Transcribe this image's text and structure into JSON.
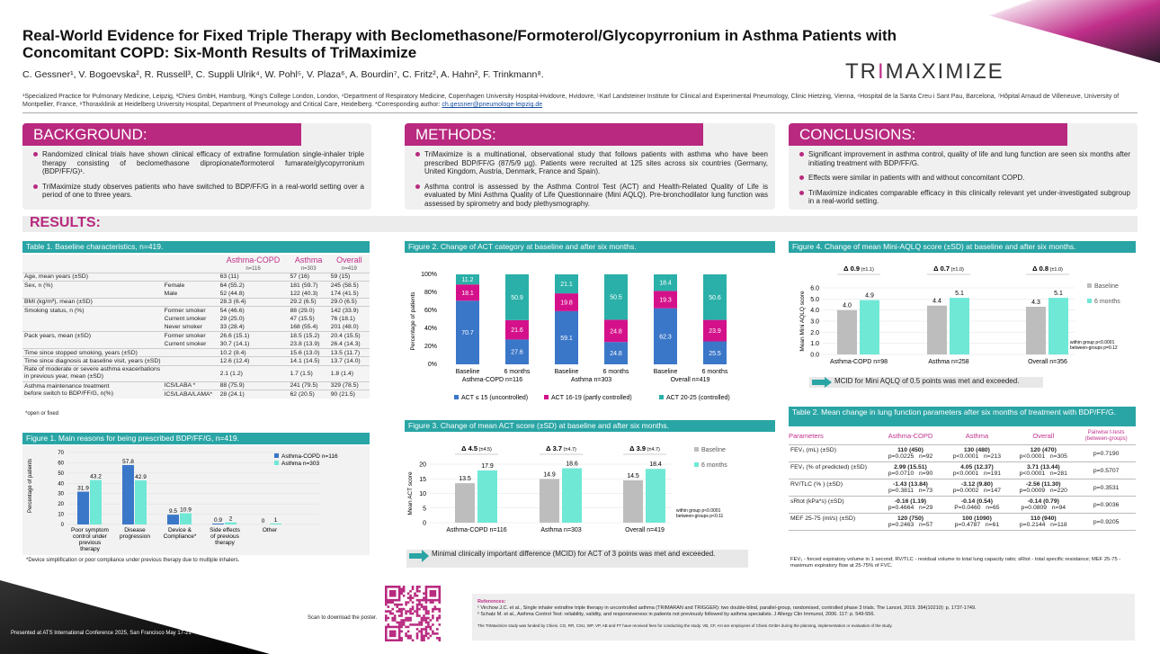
{
  "header": {
    "title": "Real-World Evidence for Fixed Triple Therapy with Beclomethasone/Formoterol/Glycopyrronium in Asthma Patients with Concomitant COPD: Six-Month Results of TriMaximize",
    "authors": "C. Gessner¹, V. Bogoevska², R. Russell³, C. Suppli Ulrik⁴, W. Pohl⁵, V. Plaza⁶, A. Bourdin⁷, C. Fritz², A. Hahn², F. Trinkmann⁸.",
    "affiliations": "¹Specialized Practice for Pulmonary Medicine, Leipzig, ²Chiesi GmbH, Hamburg, ³King's College London, London, ⁴Department of Respiratory Medicine, Copenhagen University Hospital-Hvidovre, Hvidovre, ⁵Karl Landsteiner Institute for Clinical and Experimental Pneumology, Clinic Hietzing, Vienna, ⁶Hospital de la Santa Creu i Sant Pau, Barcelona, ⁷Hôpital Arnaud de Villeneuve, University of Montpellier, France, ⁸Thoraxklinik at Heidelberg University Hospital, Department of Pneumology and Critical Care, Heidelberg. *Corresponding author: ",
    "email": "ch.gessner@pneumologe-leipzig.de",
    "logo_a": "TR",
    "logo_i": "I",
    "logo_b": "MAXIMIZE"
  },
  "background": {
    "heading": "BACKGROUND:",
    "items": [
      "Randomized clinical trials have shown clinical efficacy of extrafine formulation single-inhaler triple therapy consisting of beclomethasone dipropionate/formoterol fumarate/glycopyrronium (BDP/FF/G)¹.",
      "TriMaximize study observes patients who have switched to BDP/FF/G in a real-world setting over a period of one to three years."
    ]
  },
  "methods": {
    "heading": "METHODS:",
    "items": [
      "TriMaximize is a multinational, observational study that follows patients with asthma who have been prescribed BDP/FF/G (87/5/9 µg). Patients were recruited at 125 sites across six countries (Germany, United Kingdom, Austria, Denmark, France and Spain).",
      "Asthma control is assessed by the Asthma Control Test (ACT) and Health-Related Quality of Life is evaluated by Mini Asthma Quality of Life Questionnaire (Mini AQLQ). Pre-bronchodilator lung function was assessed by spirometry and body plethysmography."
    ]
  },
  "conclusions": {
    "heading": "CONCLUSIONS:",
    "items": [
      "Significant improvement in asthma control, quality of life and lung function are seen six months after initiating treatment with BDP/FF/G.",
      "Effects were similar in patients with and without concomitant COPD.",
      "TriMaximize indicates comparable efficacy in this clinically relevant yet under-investigated subgroup in a real-world setting."
    ]
  },
  "results_heading": "RESULTS:",
  "table1": {
    "title": "Table 1. Baseline characteristics, n=419.",
    "cols": [
      "Asthma-COPD",
      "Asthma",
      "Overall"
    ],
    "ns": [
      "n=116",
      "n=303",
      "n=419"
    ],
    "rows": [
      [
        "Age, mean years (±SD)",
        "",
        "63 (11)",
        "57 (16)",
        "59 (15)"
      ],
      [
        "Sex, n (%)",
        "Female",
        "64 (55.2)",
        "181 (59.7)",
        "245 (58.5)"
      ],
      [
        "",
        "Male",
        "52 (44.8)",
        "122 (40.3)",
        "174 (41.5)"
      ],
      [
        "BMI (kg/m²), mean (±SD)",
        "",
        "28.3 (6.4)",
        "29.2 (6.5)",
        "29.0 (6.5)"
      ],
      [
        "Smoking status, n (%)",
        "Former smoker",
        "54 (46.6)",
        "88 (29.0)",
        "142 (33.9)"
      ],
      [
        "",
        "Current smoker",
        "29 (25.0)",
        "47 (15.5)",
        "76 (18.1)"
      ],
      [
        "",
        "Never smoker",
        "33 (28.4)",
        "168 (55.4)",
        "201 (48.0)"
      ],
      [
        "Pack years, mean (±SD)",
        "Former smoker",
        "26.6 (15.1)",
        "18.5 (15.2)",
        "20.4 (15.5)"
      ],
      [
        "",
        "Current smoker",
        "30.7 (14.1)",
        "23.8 (13.9)",
        "26.4 (14.3)"
      ],
      [
        "Time since stopped smoking, years (±SD)",
        "",
        "10.2 (8.4)",
        "15.6 (13.0)",
        "13.5 (11.7)"
      ],
      [
        "Time since diagnosis at baseline visit, years (±SD)",
        "",
        "12.6 (12.4)",
        "14.1 (14.5)",
        "13.7 (14.0)"
      ]
    ],
    "exac_label1": "Rate of moderate or severe asthma exacerbations",
    "exac_label2": "in previous year, mean (±SD)",
    "exac": [
      "2.1 (1.2)",
      "1.7 (1.5)",
      "1.8 (1.4)"
    ],
    "maint_label1": "Asthma maintenance treatment",
    "maint_label2": "before switch to BDP/FF/G, n(%)",
    "maint": [
      [
        "ICS/LABA *",
        "88 (75.9)",
        "241 (79.5)",
        "329 (78.5)"
      ],
      [
        "ICS/LABA/LAMA*",
        "28 (24.1)",
        "62 (20.5)",
        "90 (21.5)"
      ]
    ],
    "footnote": "*open or fixed"
  },
  "fig1": {
    "title": "Figure 1. Main reasons for being prescribed BDP/FF/G, ",
    "title_n": "n=419.",
    "footnote": "*Device simplification or poor compliance under previous therapy due to multiple inhalers.",
    "ylabel": "Percentage of patients"
  },
  "fig2": {
    "title": "Figure 2. Change of ACT category at baseline and after six months.",
    "ylabel": "Percentage of patients"
  },
  "fig3": {
    "title": "Figure 3. Change of mean ACT score (±SD) at baseline and after six months.",
    "ylabel": "Mean ACT score",
    "note1": "within group p<0.0001",
    "note2": "between-groups p<0.11",
    "mcid": "Minimal clinically important difference (MCID) for ACT of 3 points was met and exceeded."
  },
  "fig4": {
    "title": "Figure 4. Change of mean Mini-AQLQ score (±SD) at baseline and after six months.",
    "ylabel": "Mean Mini AQLQ score",
    "note1": "within group p<0.0001",
    "note2": "between-groups p=0.12",
    "mcid": "MCID for Mini AQLQ of 0.5 points was met and exceeded."
  },
  "table2": {
    "title": "Table 2. Mean change in lung function parameters after six months of treatment with BDP/FF/G.",
    "headers": [
      "Parameters",
      "Asthma-COPD",
      "Asthma",
      "Overall",
      "Pairwise t-tests (between-groups)"
    ],
    "rows": [
      {
        "param": "FEV₁ (mL) (±SD)",
        "ac": "110 (450)",
        "a": "130 (480)",
        "o": "120 (470)",
        "ac_p": "p=0.0225",
        "ac_n": "n=92",
        "a_p": "p<0.0001",
        "a_n": "n=213",
        "o_p": "p<0.0001",
        "o_n": "n=305",
        "pw": "p=0.7190"
      },
      {
        "param": "FEV₁ (% of predicted) (±SD)",
        "ac": "2.99 (15.51)",
        "a": "4.05 (12.37)",
        "o": "3.71 (13.44)",
        "ac_p": "p=0.0710",
        "ac_n": "n=90",
        "a_p": "p<0.0001",
        "a_n": "n=191",
        "o_p": "p<0.0001",
        "o_n": "n=281",
        "pw": "p=0.5707"
      },
      {
        "param": "RV/TLC (% ) (±SD)",
        "ac": "-1.43 (13.84)",
        "a": "-3.12 (9.80)",
        "o": "-2.56 (11.30)",
        "ac_p": "p=0.3811",
        "ac_n": "n=73",
        "a_p": "p=0.0002",
        "a_n": "n=147",
        "o_p": "p=0.0009",
        "o_n": "n=220",
        "pw": "p=0.3531"
      },
      {
        "param": "sRtot (kPa*s) (±SD)",
        "ac": "-0.16 (1.19)",
        "a": "-0.14 (0.54)",
        "o": "-0.14 (0.79)",
        "ac_p": "p=0.4664",
        "ac_n": "n=29",
        "a_p": "P=0.0460",
        "a_n": "n=65",
        "o_p": "p=0.0809",
        "o_n": "n=94",
        "pw": "p=0.9036"
      },
      {
        "param": "MEF 25-75 (ml/s) (±SD)",
        "ac": "120 (750)",
        "a": "100 (1090)",
        "o": "110 (940)",
        "ac_p": "p=0.2463",
        "ac_n": "n=57",
        "a_p": "p=0.4787",
        "a_n": "n=61",
        "o_p": "p=0.2144",
        "o_n": "n=118",
        "pw": "p=0.9205"
      }
    ],
    "footnote": "FEV₁ - forced expiratory volume in 1 second; RV/TLC - residual volume to total lung capacity ratio; sRtot - total specific resistance; MEF 25-75 - maximum expiratory flow at 25-75% of FVC."
  },
  "refs": {
    "heading": "References:",
    "r1": "¹ Virchow J.C. et al., Single inhaler extrafine triple therapy in uncontrolled asthma (TRIMARAN and TRIGGER): two double-blind, parallel-group, randomised, controlled phase 3 trials. The Lancet, 2019. 394(10210): p. 1737-1749.",
    "r2": "² Schatz M. et al., Asthma Control Test: reliability, validity, and responsiveness in patients not previously followed by asthma specialists. J Allergy Clin Immunol, 2006. 117: p. 549-556.",
    "funding": "The TriMaximize study was funded by Chiesi. CG, RR, CSU, WP, VP, AB and FT have received fees for conducting the study. VB, CF, AH are employees of Chiesi GmbH during the planning, implementation or evaluation of the study."
  },
  "scan": "Scan to download the poster.",
  "presented": "Presented at ATS International Conference 2025, San Francisco  May 17-21",
  "chart_data": [
    {
      "type": "bar",
      "id": "fig1",
      "categories": [
        "Poor symptom control under previous therapy",
        "Disease progression",
        "Device & Compliance*",
        "Side effects of previous therapy",
        "Other"
      ],
      "series": [
        {
          "name": "Asthma-COPD n=116",
          "color": "#3b77c8",
          "values": [
            31.9,
            57.8,
            9.5,
            0.9,
            0
          ]
        },
        {
          "name": "Asthma n=303",
          "color": "#6fe8d6",
          "values": [
            43.2,
            42.9,
            10.9,
            2,
            1
          ]
        }
      ],
      "ylim": [
        0,
        70
      ],
      "yticks": [
        0,
        10,
        20,
        30,
        40,
        50,
        60,
        70
      ],
      "ylabel": "Percentage of patients"
    },
    {
      "type": "bar",
      "id": "fig2",
      "stacked": true,
      "groups": [
        "Asthma-COPD n=116",
        "Asthma n=303",
        "Overall n=419"
      ],
      "categories": [
        "Baseline",
        "6 months",
        "Baseline",
        "6 months",
        "Baseline",
        "6 months"
      ],
      "series": [
        {
          "name": "ACT ≤ 15 (uncontrolled)",
          "color": "#3b77c8",
          "values": [
            70.7,
            27.6,
            59.1,
            24.8,
            62.3,
            25.5
          ]
        },
        {
          "name": "ACT 16-19 (partly controlled)",
          "color": "#d4118a",
          "values": [
            18.1,
            21.6,
            19.8,
            24.8,
            19.3,
            23.9
          ]
        },
        {
          "name": "ACT 20-25 (controlled)",
          "color": "#2ab0a8",
          "values": [
            11.2,
            50.9,
            21.1,
            50.5,
            18.4,
            50.6
          ]
        }
      ],
      "ylim": [
        0,
        100
      ],
      "yticks": [
        "0%",
        "20%",
        "40%",
        "60%",
        "80%",
        "100%"
      ],
      "ylabel": "Percentage of patients"
    },
    {
      "type": "bar",
      "id": "fig3",
      "categories": [
        "Asthma-COPD n=116",
        "Asthma n=303",
        "Overall n=419"
      ],
      "series": [
        {
          "name": "Baseline",
          "color": "#bdbdbd",
          "values": [
            13.5,
            14.9,
            14.5
          ]
        },
        {
          "name": "6 months",
          "color": "#6fe8d6",
          "values": [
            17.9,
            18.6,
            18.4
          ]
        }
      ],
      "deltas": [
        "Δ 4.5",
        "Δ 3.7",
        "Δ 3.9"
      ],
      "delta_sd": [
        "(±4.5)",
        "(±4.7)",
        "(±4.7)"
      ],
      "ylim": [
        0,
        20
      ],
      "yticks": [
        0,
        5,
        10,
        15,
        20
      ],
      "ylabel": "Mean ACT score"
    },
    {
      "type": "bar",
      "id": "fig4",
      "categories": [
        "Asthma-COPD n=98",
        "Asthma n=258",
        "Overall n=356"
      ],
      "series": [
        {
          "name": "Baseline",
          "color": "#bdbdbd",
          "values": [
            4.0,
            4.4,
            4.3
          ]
        },
        {
          "name": "6 months",
          "color": "#6fe8d6",
          "values": [
            4.9,
            5.1,
            5.1
          ]
        }
      ],
      "deltas": [
        "Δ 0.9",
        "Δ 0.7",
        "Δ 0.8"
      ],
      "delta_sd": [
        "(±1.1)",
        "(±1.0)",
        "(±1.0)"
      ],
      "ylim": [
        0,
        6
      ],
      "yticks": [
        "0.0",
        "1.0",
        "2.0",
        "3.0",
        "4.0",
        "5.0",
        "6.0"
      ],
      "ylabel": "Mean Mini AQLQ score"
    }
  ]
}
